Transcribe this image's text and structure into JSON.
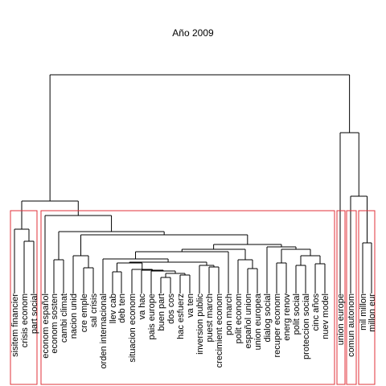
{
  "title": "Año 2009",
  "chart_data": {
    "type": "dendrogram",
    "title": "Año 2009",
    "leaves": [
      "sisitem financier",
      "crisis econom",
      "part social",
      "econom español",
      "econom sosten",
      "cambi climat",
      "nacion unid",
      "cre emple",
      "sal crisis",
      "orden internacional",
      "llev cab",
      "deb ten",
      "situacion econom",
      "va hac",
      "pais europe",
      "buen part",
      "dos cos",
      "hac esfuerz",
      "va ten",
      "inversion public",
      "puest march",
      "crecimient econom",
      "pon march",
      "polit econom",
      "español union",
      "union europea",
      "dialog social",
      "recuper econom",
      "energ renov",
      "polit social",
      "proteccion social",
      "cinc años",
      "nuev model",
      "union europe",
      "comun autonom",
      "mil millon",
      "millon eur"
    ],
    "cluster_boxes": [
      {
        "first": 0,
        "last": 2
      },
      {
        "first": 3,
        "last": 32
      },
      {
        "first": 33,
        "last": 33
      },
      {
        "first": 34,
        "last": 34
      },
      {
        "first": 35,
        "last": 36
      }
    ]
  }
}
